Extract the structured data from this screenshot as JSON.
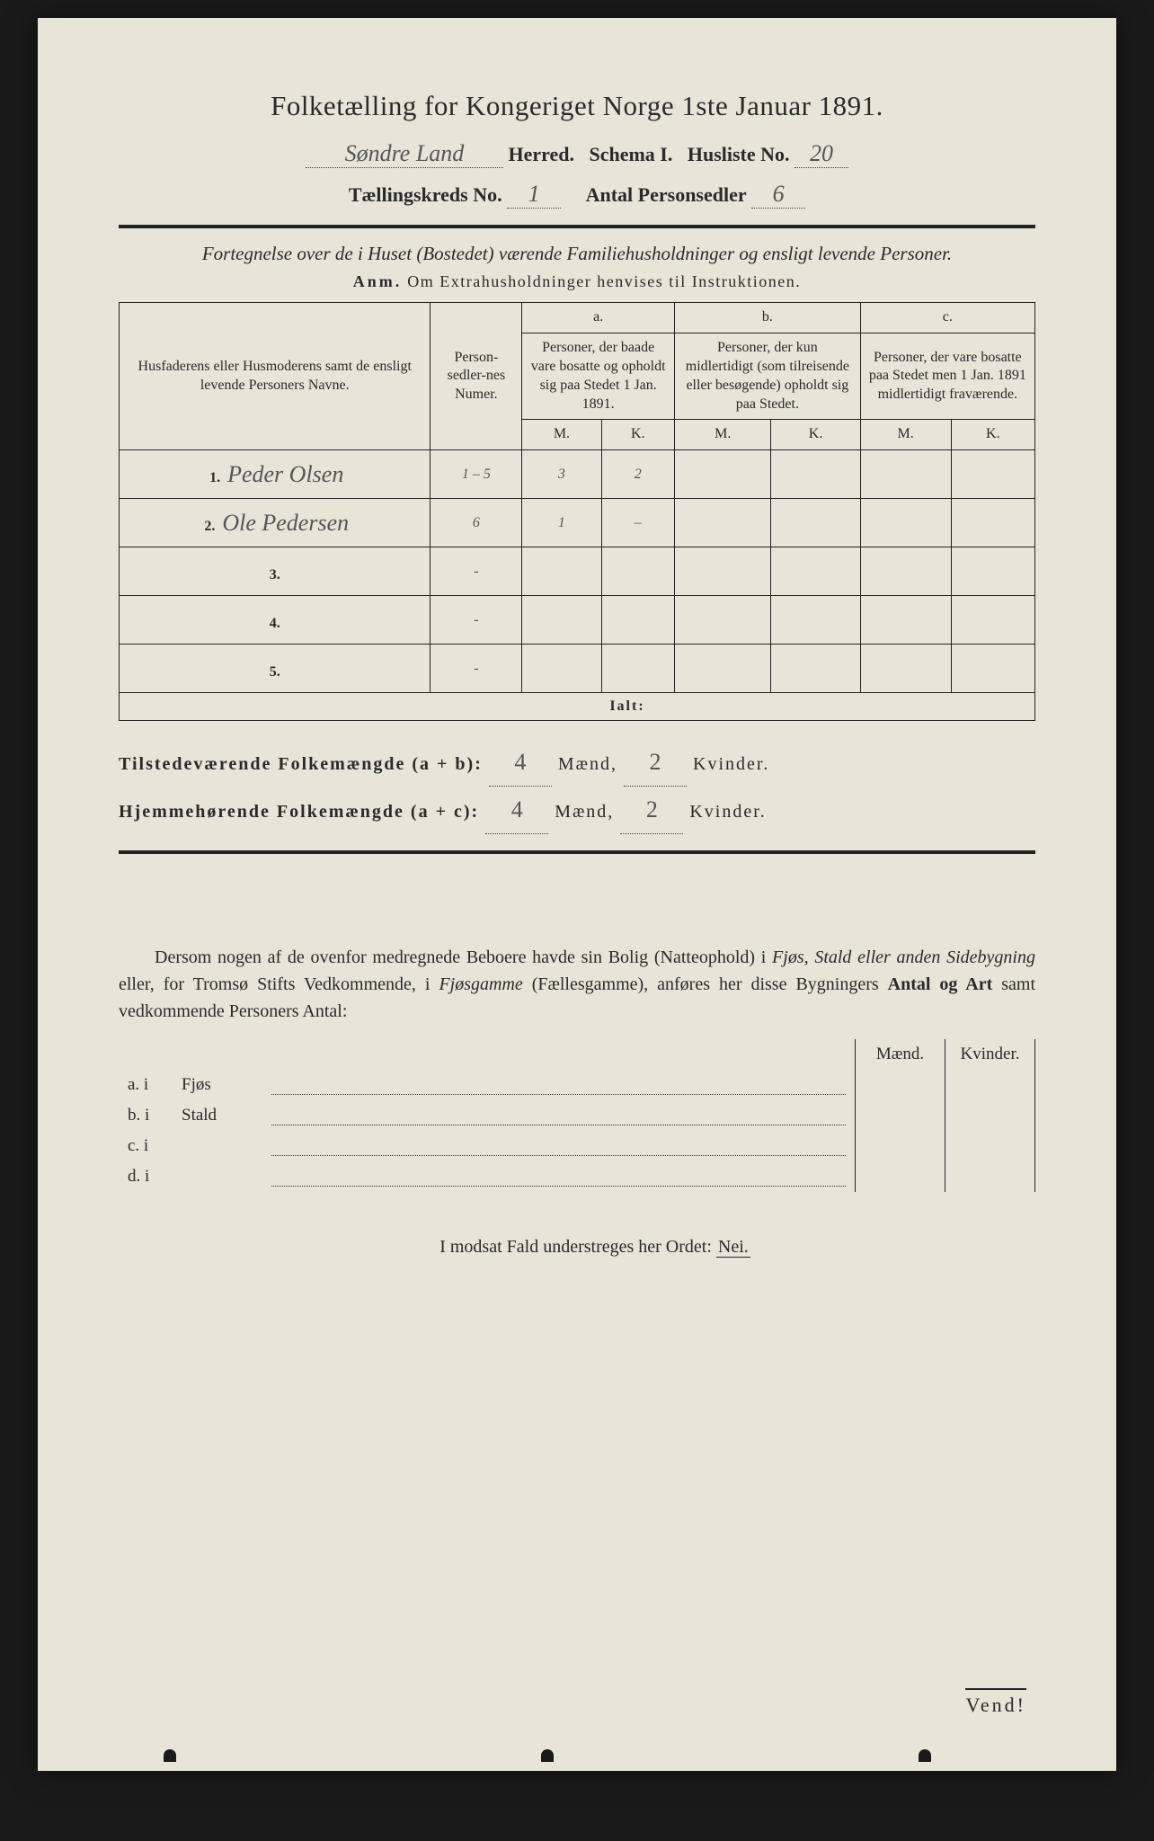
{
  "title": "Folketælling for Kongeriget Norge 1ste Januar 1891.",
  "header": {
    "herred_value": "Søndre Land",
    "herred_label": "Herred.",
    "schema_label": "Schema I.",
    "husliste_label": "Husliste No.",
    "husliste_value": "20",
    "kreds_label": "Tællingskreds No.",
    "kreds_value": "1",
    "personsedler_label": "Antal Personsedler",
    "personsedler_value": "6"
  },
  "subtitle": "Fortegnelse over de i Huset (Bostedet) værende Familiehusholdninger og ensligt levende Personer.",
  "anm_label": "Anm.",
  "anm_text": "Om Extrahusholdninger henvises til Instruktionen.",
  "table": {
    "col_name": "Husfaderens eller Husmoderens samt de ensligt levende Personers Navne.",
    "col_pers": "Person-sedler-nes Numer.",
    "col_a_letter": "a.",
    "col_a": "Personer, der baade vare bosatte og opholdt sig paa Stedet 1 Jan. 1891.",
    "col_b_letter": "b.",
    "col_b": "Personer, der kun midlertidigt (som tilreisende eller besøgende) opholdt sig paa Stedet.",
    "col_c_letter": "c.",
    "col_c": "Personer, der vare bosatte paa Stedet men 1 Jan. 1891 midlertidigt fraværende.",
    "m_label": "M.",
    "k_label": "K.",
    "rows": [
      {
        "n": "1.",
        "name": "Peder Olsen",
        "pers": "1 – 5",
        "am": "3",
        "ak": "2",
        "bm": "",
        "bk": "",
        "cm": "",
        "ck": ""
      },
      {
        "n": "2.",
        "name": "Ole Pedersen",
        "pers": "6",
        "am": "1",
        "ak": "–",
        "bm": "",
        "bk": "",
        "cm": "",
        "ck": ""
      },
      {
        "n": "3.",
        "name": "",
        "pers": "-",
        "am": "",
        "ak": "",
        "bm": "",
        "bk": "",
        "cm": "",
        "ck": ""
      },
      {
        "n": "4.",
        "name": "",
        "pers": "-",
        "am": "",
        "ak": "",
        "bm": "",
        "bk": "",
        "cm": "",
        "ck": ""
      },
      {
        "n": "5.",
        "name": "",
        "pers": "-",
        "am": "",
        "ak": "",
        "bm": "",
        "bk": "",
        "cm": "",
        "ck": ""
      }
    ],
    "ialt": "Ialt:"
  },
  "summary": {
    "line1_label": "Tilstedeværende Folkemængde (a + b):",
    "line2_label": "Hjemmehørende Folkemængde (a + c):",
    "maend": "Mænd,",
    "kvinder": "Kvinder.",
    "v1m": "4",
    "v1k": "2",
    "v2m": "4",
    "v2k": "2"
  },
  "prose": "Dersom nogen af de ovenfor medregnede Beboere havde sin Bolig (Natteophold) i Fjøs, Stald eller anden Sidebygning eller, for Tromsø Stifts Vedkommende, i Fjøsgamme (Fællesgamme), anføres her disse Bygningers Antal og Art samt vedkommende Personers Antal:",
  "bldg": {
    "mk_m": "Mænd.",
    "mk_k": "Kvinder.",
    "rows": [
      {
        "label": "a.  i",
        "type": "Fjøs"
      },
      {
        "label": "b.  i",
        "type": "Stald"
      },
      {
        "label": "c.  i",
        "type": ""
      },
      {
        "label": "d.  i",
        "type": ""
      }
    ]
  },
  "nei_line_pre": "I modsat Fald understreges her Ordet:",
  "nei": "Nei.",
  "vend": "Vend!"
}
